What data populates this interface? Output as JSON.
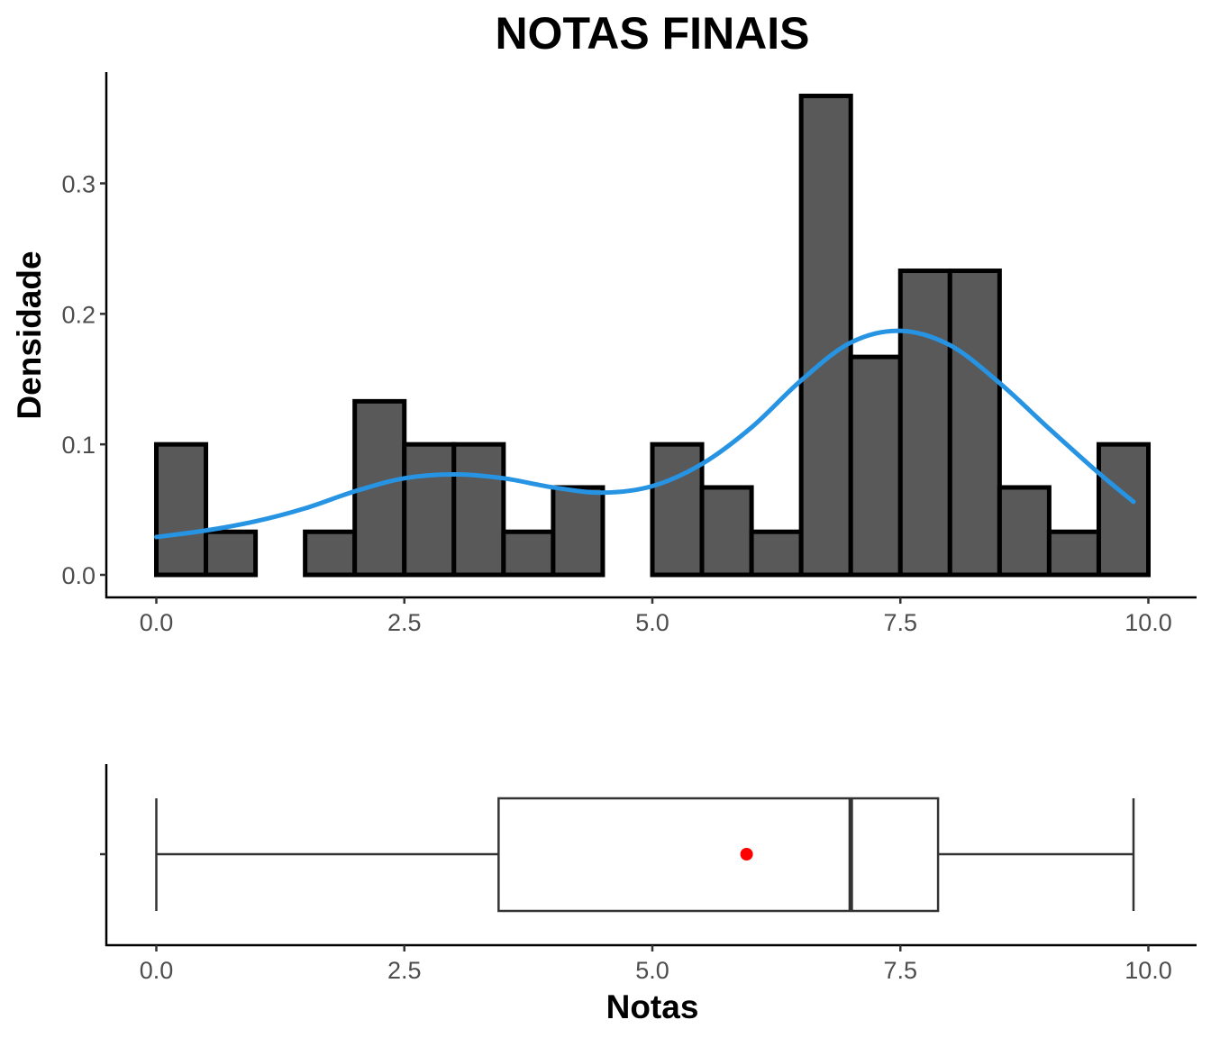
{
  "chart_data": [
    {
      "type": "histogram",
      "title": "NOTAS FINAIS",
      "xlabel": "",
      "ylabel": "Densidade",
      "xlim": [
        -0.5,
        10.5
      ],
      "ylim": [
        -0.018,
        0.385
      ],
      "xticks": [
        "0.0",
        "2.5",
        "5.0",
        "7.5",
        "10.0"
      ],
      "yticks": [
        "0.0",
        "0.1",
        "0.2",
        "0.3"
      ],
      "grid": false,
      "bin_width": 0.5,
      "bins": [
        {
          "start": 0.0,
          "end": 0.5,
          "density": 0.1
        },
        {
          "start": 0.5,
          "end": 1.0,
          "density": 0.033
        },
        {
          "start": 1.0,
          "end": 1.5,
          "density": 0.0
        },
        {
          "start": 1.5,
          "end": 2.0,
          "density": 0.033
        },
        {
          "start": 2.0,
          "end": 2.5,
          "density": 0.133
        },
        {
          "start": 2.5,
          "end": 3.0,
          "density": 0.1
        },
        {
          "start": 3.0,
          "end": 3.5,
          "density": 0.1
        },
        {
          "start": 3.5,
          "end": 4.0,
          "density": 0.033
        },
        {
          "start": 4.0,
          "end": 4.5,
          "density": 0.067
        },
        {
          "start": 4.5,
          "end": 5.0,
          "density": 0.0
        },
        {
          "start": 5.0,
          "end": 5.5,
          "density": 0.1
        },
        {
          "start": 5.5,
          "end": 6.0,
          "density": 0.067
        },
        {
          "start": 6.0,
          "end": 6.5,
          "density": 0.033
        },
        {
          "start": 6.5,
          "end": 7.0,
          "density": 0.367
        },
        {
          "start": 7.0,
          "end": 7.5,
          "density": 0.167
        },
        {
          "start": 7.5,
          "end": 8.0,
          "density": 0.233
        },
        {
          "start": 8.0,
          "end": 8.5,
          "density": 0.233
        },
        {
          "start": 8.5,
          "end": 9.0,
          "density": 0.067
        },
        {
          "start": 9.0,
          "end": 9.5,
          "density": 0.033
        },
        {
          "start": 9.5,
          "end": 10.0,
          "density": 0.1
        }
      ],
      "density_curve": {
        "color": "#2694e3",
        "x": [
          0.0,
          0.5,
          1.0,
          1.5,
          2.0,
          2.5,
          3.0,
          3.5,
          4.0,
          4.5,
          5.0,
          5.5,
          6.0,
          6.5,
          7.0,
          7.5,
          8.0,
          8.5,
          9.0,
          9.5,
          9.85
        ],
        "y": [
          0.029,
          0.034,
          0.041,
          0.051,
          0.064,
          0.074,
          0.077,
          0.074,
          0.067,
          0.063,
          0.068,
          0.085,
          0.113,
          0.149,
          0.178,
          0.187,
          0.176,
          0.147,
          0.112,
          0.078,
          0.056
        ]
      },
      "bar_fill": "#595959",
      "bar_stroke": "#000000"
    },
    {
      "type": "boxplot",
      "xlabel": "Notas",
      "xlim": [
        -0.5,
        10.5
      ],
      "xticks": [
        "0.0",
        "2.5",
        "5.0",
        "7.5",
        "10.0"
      ],
      "whisker_low": 0.0,
      "q1": 3.45,
      "median": 7.0,
      "q3": 7.88,
      "whisker_high": 9.85,
      "mean": 5.95,
      "mean_color": "#ff0000",
      "box_stroke": "#333333"
    }
  ]
}
